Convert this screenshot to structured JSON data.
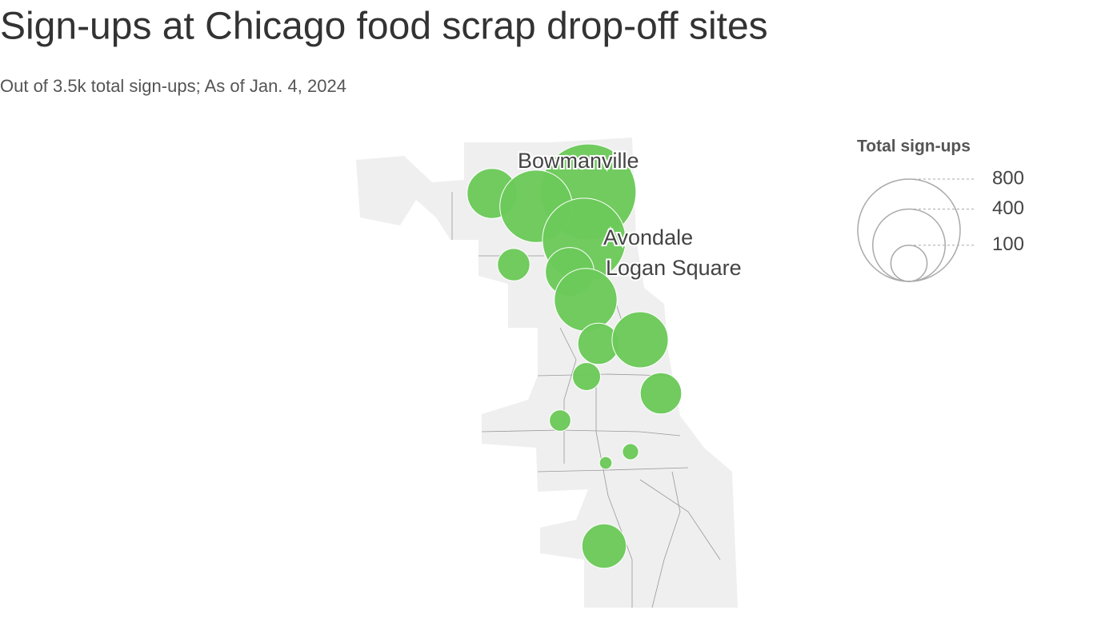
{
  "title": "Sign-ups at Chicago food scrap drop-off sites",
  "subtitle": "Out of 3.5k total sign-ups; As of Jan. 4, 2024",
  "legend": {
    "title": "Total sign-ups",
    "sizes": [
      800,
      400,
      100
    ]
  },
  "sites": [
    {
      "name": "Bowmanville",
      "value": 700
    },
    {
      "value": 190
    },
    {
      "value": 400
    },
    {
      "name": "Avondale",
      "value": 530
    },
    {
      "value": 180
    },
    {
      "name": "Logan Square",
      "value": 300
    },
    {
      "value": 80
    },
    {
      "value": 130
    },
    {
      "value": 240
    },
    {
      "value": 60
    },
    {
      "value": 130
    },
    {
      "value": 35
    },
    {
      "value": 20
    },
    {
      "value": 12
    },
    {
      "value": 150
    }
  ]
}
